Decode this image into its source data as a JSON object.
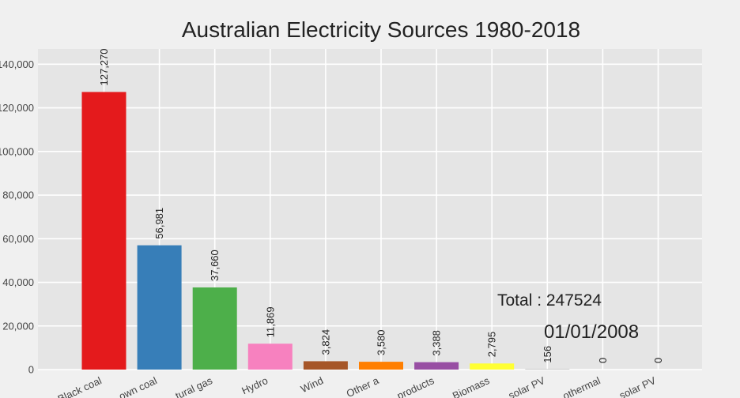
{
  "chart_data": {
    "type": "bar",
    "title": "Australian Electricity Sources 1980-2018",
    "xlabel": "",
    "ylabel": "",
    "ylim": [
      0,
      147000
    ],
    "yticks": [
      0,
      20000,
      40000,
      60000,
      80000,
      100000,
      120000,
      140000
    ],
    "ytick_labels": [
      "0",
      "20,000",
      "40,000",
      "60,000",
      "80,000",
      "100,000",
      "120,000",
      "140,000"
    ],
    "grid": true,
    "categories": [
      "Black coal",
      "Brown coal",
      "Natural gas",
      "Hydro",
      "Wind",
      "Other a",
      "Oil products",
      "Biomass",
      "Small-scale solar PV",
      "Geothermal",
      "Large-scale solar PV"
    ],
    "category_labels_visible": [
      "Black coal",
      "own coal",
      "tural gas",
      "Hydro",
      "Wind",
      "Other a",
      "products",
      "Biomass",
      "solar PV",
      "othermal",
      "solar PV"
    ],
    "values": [
      127270,
      56981,
      37660,
      11869,
      3824,
      3580,
      3388,
      2795,
      156,
      0,
      0
    ],
    "value_labels": [
      "127,270",
      "56,981",
      "37,660",
      "11,869",
      "3,824",
      "3,580",
      "3,388",
      "2,795",
      "156",
      "0",
      "0"
    ],
    "colors": [
      "#e41a1c",
      "#377eb8",
      "#4daf4a",
      "#f781bf",
      "#a65628",
      "#ff7f00",
      "#984ea3",
      "#ffff33",
      "#999999",
      "#999999",
      "#999999"
    ],
    "annotations": {
      "total": "Total : 247524",
      "date": "01/01/2008"
    }
  }
}
